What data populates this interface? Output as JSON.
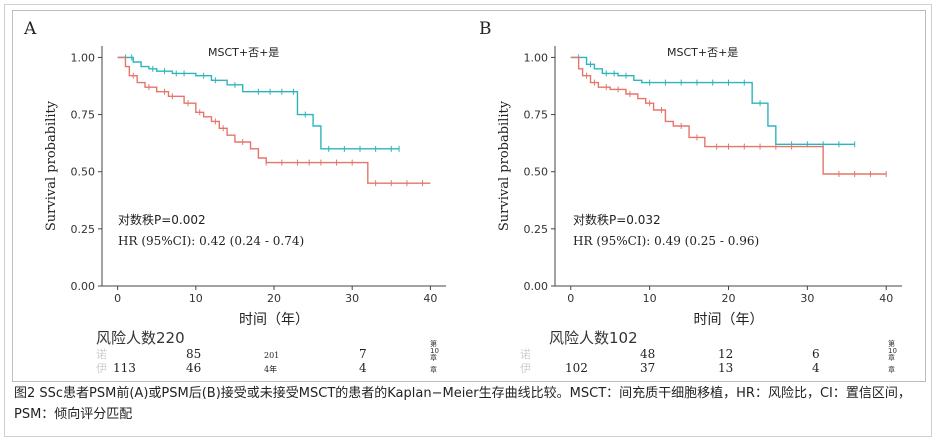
{
  "caption": "图2 SSc患者PSM前(A)或PSM后(B)接受或未接受MSCT的患者的Kaplan−Meier生存曲线比较。MSCT：间充质干细胞移植，HR：风险比，CI：置信区间，PSM：倾向评分匹配",
  "colors": {
    "green": "#2cb5bd",
    "red": "#e5756a",
    "axis": "#444444"
  },
  "chart_data": [
    {
      "type": "line",
      "panel_label": "A",
      "legend_title": "MSCT+否+是",
      "ylabel": "Survival probability",
      "xlabel": "时间（年）",
      "xlim": [
        -2,
        42
      ],
      "ylim": [
        0,
        1.05
      ],
      "x_ticks": [
        "0",
        "10",
        "20",
        "30",
        "40"
      ],
      "y_ticks": [
        "0.00",
        "0.25",
        "0.50",
        "0.75",
        "1.00"
      ],
      "pvalue": "对数秩P=0.002",
      "hr": "HR (95%CI): 0.42 (0.24 - 0.74)",
      "series": [
        {
          "color": "#2cb5bd",
          "steps": [
            [
              0,
              1.0
            ],
            [
              2,
              0.98
            ],
            [
              3,
              0.96
            ],
            [
              4,
              0.95
            ],
            [
              5,
              0.94
            ],
            [
              7,
              0.93
            ],
            [
              10,
              0.92
            ],
            [
              12,
              0.9
            ],
            [
              14,
              0.88
            ],
            [
              16,
              0.85
            ],
            [
              23,
              0.75
            ],
            [
              25,
              0.7
            ],
            [
              26,
              0.6
            ],
            [
              40,
              0.6
            ]
          ],
          "end_x": 36,
          "censors": [
            1,
            1.8,
            4.5,
            6,
            7.5,
            8.5,
            11,
            12.5,
            15,
            18,
            19.5,
            21,
            22.5,
            24,
            27,
            29,
            31,
            33,
            35,
            36
          ]
        },
        {
          "color": "#e5756a",
          "steps": [
            [
              0,
              1.0
            ],
            [
              1,
              0.96
            ],
            [
              1.5,
              0.92
            ],
            [
              2.5,
              0.89
            ],
            [
              3.5,
              0.87
            ],
            [
              5,
              0.85
            ],
            [
              6.5,
              0.83
            ],
            [
              8.5,
              0.8
            ],
            [
              10,
              0.76
            ],
            [
              11,
              0.74
            ],
            [
              12,
              0.72
            ],
            [
              13,
              0.69
            ],
            [
              14,
              0.66
            ],
            [
              15,
              0.63
            ],
            [
              17,
              0.6
            ],
            [
              18,
              0.56
            ],
            [
              19,
              0.54
            ],
            [
              32,
              0.45
            ],
            [
              40,
              0.45
            ]
          ],
          "end_x": 40,
          "censors": [
            2,
            4,
            6,
            7,
            9,
            10.5,
            12.5,
            13.5,
            16,
            19,
            21,
            23,
            24.5,
            26,
            28,
            30,
            33,
            35,
            37,
            39
          ]
        }
      ],
      "risk_title": "风险人数220",
      "risk_rows": [
        {
          "label": "诺",
          "values": [
            "",
            "85",
            "201",
            "7"
          ],
          "tail": "第\n10\n章"
        },
        {
          "label": "伊",
          "values": [
            "113",
            "46",
            "4年",
            "4"
          ],
          "tail": "章"
        }
      ]
    },
    {
      "type": "line",
      "panel_label": "B",
      "legend_title": "MSCT+否+是",
      "ylabel": "Survival probability",
      "xlabel": "时间（年）",
      "xlim": [
        -2,
        42
      ],
      "ylim": [
        0,
        1.05
      ],
      "x_ticks": [
        "0",
        "10",
        "20",
        "30",
        "40"
      ],
      "y_ticks": [
        "0.00",
        "0.25",
        "0.50",
        "0.75",
        "1.00"
      ],
      "pvalue": "对数秩P=0.032",
      "hr": "HR (95%CI): 0.49 (0.25 - 0.96)",
      "series": [
        {
          "color": "#2cb5bd",
          "steps": [
            [
              0,
              1.0
            ],
            [
              2,
              0.97
            ],
            [
              3,
              0.95
            ],
            [
              4,
              0.93
            ],
            [
              6,
              0.92
            ],
            [
              8,
              0.9
            ],
            [
              9,
              0.89
            ],
            [
              23,
              0.8
            ],
            [
              25,
              0.7
            ],
            [
              26,
              0.62
            ],
            [
              40,
              0.62
            ]
          ],
          "end_x": 36,
          "censors": [
            1,
            2.5,
            4.5,
            5.5,
            7,
            10,
            12,
            14,
            16,
            18,
            20,
            22,
            24,
            28,
            30,
            32,
            34,
            36
          ]
        },
        {
          "color": "#e5756a",
          "steps": [
            [
              0,
              1.0
            ],
            [
              1,
              0.95
            ],
            [
              1.5,
              0.92
            ],
            [
              2.5,
              0.89
            ],
            [
              3.5,
              0.87
            ],
            [
              5,
              0.86
            ],
            [
              7,
              0.84
            ],
            [
              8.5,
              0.82
            ],
            [
              9.5,
              0.8
            ],
            [
              10.5,
              0.77
            ],
            [
              12,
              0.72
            ],
            [
              13,
              0.7
            ],
            [
              15,
              0.65
            ],
            [
              17,
              0.61
            ],
            [
              32,
              0.49
            ],
            [
              40,
              0.49
            ]
          ],
          "end_x": 40,
          "censors": [
            2,
            3,
            4.5,
            6,
            7.5,
            10,
            11.5,
            14,
            16,
            18.5,
            20,
            22,
            24,
            26,
            28,
            34,
            36,
            38,
            40
          ]
        }
      ],
      "risk_title": "风险人数102",
      "risk_rows": [
        {
          "label": "诺",
          "values": [
            "",
            "48",
            "12",
            "6"
          ],
          "tail": "第\n10\n章"
        },
        {
          "label": "伊",
          "values": [
            "102",
            "37",
            "13",
            "4"
          ],
          "tail": "章"
        }
      ]
    }
  ]
}
